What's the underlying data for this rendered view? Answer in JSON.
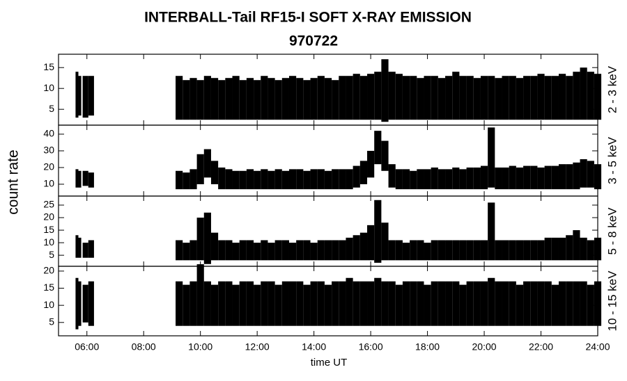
{
  "chart_data": {
    "type": "range",
    "title": "INTERBALL-Tail RF15-I SOFT X-RAY EMISSION",
    "subtitle": "970722",
    "x_label": "time UT",
    "y_label": "count rate",
    "color": "#000000",
    "xlim": [
      5,
      24
    ],
    "xticks": [
      {
        "value": 6,
        "label": "06:00"
      },
      {
        "value": 8,
        "label": "08:00"
      },
      {
        "value": 10,
        "label": "10:00"
      },
      {
        "value": 12,
        "label": "12:00"
      },
      {
        "value": 14,
        "label": "14:00"
      },
      {
        "value": 16,
        "label": "16:00"
      },
      {
        "value": 18,
        "label": "18:00"
      },
      {
        "value": 20,
        "label": "20:00"
      },
      {
        "value": 22,
        "label": "22:00"
      },
      {
        "value": 24,
        "label": "24:00"
      }
    ],
    "x": [
      5.65,
      5.75,
      5.95,
      6.15,
      7.5,
      9.25,
      9.5,
      9.75,
      10,
      10.25,
      10.5,
      10.75,
      11,
      11.25,
      11.5,
      11.75,
      12,
      12.25,
      12.5,
      12.75,
      13,
      13.25,
      13.5,
      13.75,
      14,
      14.25,
      14.5,
      14.75,
      15,
      15.25,
      15.5,
      15.75,
      16,
      16.25,
      16.5,
      16.75,
      17,
      17.25,
      17.5,
      17.75,
      18,
      18.25,
      18.5,
      18.75,
      19,
      19.25,
      19.5,
      19.75,
      20,
      20.25,
      20.5,
      20.75,
      21,
      21.25,
      21.5,
      21.75,
      22,
      22.25,
      22.5,
      22.75,
      23,
      23.25,
      23.5,
      23.75,
      24
    ],
    "panels": [
      {
        "label": "2 - 3 keV",
        "ylim": [
          1.2,
          18.2
        ],
        "yticks": [
          5,
          10,
          15
        ],
        "high": [
          14,
          13,
          13,
          13,
          null,
          13,
          12,
          12.5,
          12,
          13,
          12.5,
          12,
          12.5,
          13,
          12,
          12.5,
          12,
          13,
          12.5,
          12,
          12.5,
          13,
          12.5,
          12,
          12.5,
          13,
          12.5,
          12,
          13,
          13,
          13.5,
          13,
          13.5,
          14,
          17,
          14,
          13.5,
          13,
          13,
          12.5,
          13,
          13,
          12.5,
          13,
          14,
          13,
          13,
          12.5,
          13,
          13,
          12.5,
          13,
          13,
          12.5,
          13,
          13,
          13.5,
          13,
          13,
          13.5,
          13,
          14,
          15,
          14,
          13.5
        ],
        "low": [
          3,
          3.5,
          3,
          3.5,
          null,
          2.5,
          2.5,
          2.5,
          2.5,
          2.5,
          2.5,
          2.5,
          2.5,
          2.5,
          2.5,
          2.5,
          2.5,
          2.5,
          2.5,
          2.5,
          2.5,
          2.5,
          2.5,
          2.5,
          2.5,
          2.5,
          2.5,
          2.5,
          2.5,
          2.5,
          2.5,
          2.5,
          2.5,
          2.5,
          2,
          2.5,
          2.5,
          2.5,
          2.5,
          2.5,
          2.5,
          2.5,
          2.5,
          2.5,
          2.5,
          2.5,
          2.5,
          2.5,
          2.5,
          2.5,
          2.5,
          2.5,
          2.5,
          2.5,
          2.5,
          2.5,
          2.5,
          2.5,
          2.5,
          2.5,
          2.5,
          2.5,
          2.5,
          2.5,
          2.5
        ]
      },
      {
        "label": "3 - 5 keV",
        "ylim": [
          2.9,
          45.4
        ],
        "yticks": [
          10,
          20,
          30,
          40
        ],
        "high": [
          19,
          18,
          18,
          17,
          null,
          18,
          17,
          19,
          28,
          31,
          24,
          20,
          19,
          18,
          18,
          19,
          18,
          19,
          18,
          19,
          18,
          19,
          19,
          18,
          19,
          19,
          18,
          19,
          19,
          19,
          21,
          24,
          30,
          42,
          36,
          22,
          19,
          19,
          18,
          19,
          19,
          20,
          19,
          19,
          20,
          19,
          20,
          20,
          21,
          44,
          20,
          20,
          21,
          20,
          21,
          21,
          20,
          21,
          21,
          22,
          22,
          23,
          25,
          24,
          22
        ],
        "low": [
          8,
          8,
          9,
          8,
          null,
          7,
          7,
          7,
          10,
          14,
          10,
          7,
          7,
          7,
          7,
          7,
          7,
          7,
          7,
          7,
          7,
          7,
          7,
          7,
          7,
          7,
          7,
          7,
          7,
          7,
          8,
          10,
          14,
          22,
          18,
          8,
          7,
          7,
          7,
          7,
          7,
          7,
          7,
          7,
          7,
          7,
          7,
          7,
          7,
          8,
          7,
          7,
          7,
          7,
          7,
          7,
          7,
          7,
          7,
          7,
          7,
          7,
          8,
          8,
          7
        ]
      },
      {
        "label": "5 - 8 keV",
        "ylim": [
          0.6,
          28.6
        ],
        "yticks": [
          5,
          10,
          15,
          20,
          25
        ],
        "high": [
          13,
          12,
          10,
          11,
          null,
          11,
          10,
          11,
          20,
          22,
          14,
          11,
          11,
          10,
          11,
          11,
          10,
          11,
          10,
          11,
          11,
          10,
          11,
          11,
          10,
          11,
          11,
          11,
          11,
          12,
          13,
          14,
          17,
          27,
          18,
          11,
          11,
          10,
          11,
          11,
          10,
          11,
          11,
          11,
          11,
          11,
          11,
          11,
          11,
          26,
          11,
          11,
          11,
          11,
          11,
          11,
          11,
          12,
          12,
          12,
          13,
          15,
          12,
          11,
          12
        ],
        "low": [
          4,
          4,
          4,
          4,
          null,
          3,
          3,
          3,
          3,
          1.5,
          3,
          3,
          3,
          3,
          3,
          3,
          3,
          3,
          3,
          3,
          3,
          3,
          3,
          3,
          3,
          3,
          3,
          3,
          3,
          3,
          3,
          3,
          3,
          2,
          3,
          3,
          3,
          3,
          3,
          3,
          3,
          3,
          3,
          3,
          3,
          3,
          3,
          3,
          3,
          3,
          3,
          3,
          3,
          3,
          3,
          3,
          3,
          3,
          3,
          3,
          3,
          3,
          3,
          3,
          3
        ]
      },
      {
        "label": "10 - 15 keV",
        "ylim": [
          1.1,
          21.4
        ],
        "yticks": [
          5,
          10,
          15,
          20
        ],
        "high": [
          18,
          17,
          16,
          17,
          null,
          17,
          16,
          17,
          22,
          17,
          16,
          17,
          17,
          16,
          17,
          17,
          16,
          17,
          17,
          16,
          17,
          17,
          17,
          16,
          17,
          17,
          16,
          17,
          17,
          18,
          17,
          17,
          17,
          18,
          17,
          17,
          16,
          17,
          17,
          17,
          16,
          17,
          17,
          17,
          17,
          16,
          17,
          17,
          17,
          18,
          17,
          17,
          17,
          16,
          17,
          17,
          17,
          17,
          16,
          17,
          17,
          17,
          17,
          16,
          17
        ],
        "low": [
          3,
          4,
          5,
          4,
          null,
          4,
          4,
          4,
          4,
          4,
          4,
          4,
          4,
          4,
          4,
          4,
          4,
          4,
          4,
          4,
          4,
          4,
          4,
          4,
          4,
          4,
          4,
          4,
          4,
          4,
          4,
          4,
          4,
          4,
          4,
          4,
          4,
          4,
          4,
          4,
          4,
          4,
          4,
          4,
          4,
          4,
          4,
          4,
          4,
          4,
          4,
          4,
          4,
          4,
          4,
          4,
          4,
          4,
          4,
          4,
          4,
          4,
          4,
          4,
          4
        ]
      }
    ]
  }
}
